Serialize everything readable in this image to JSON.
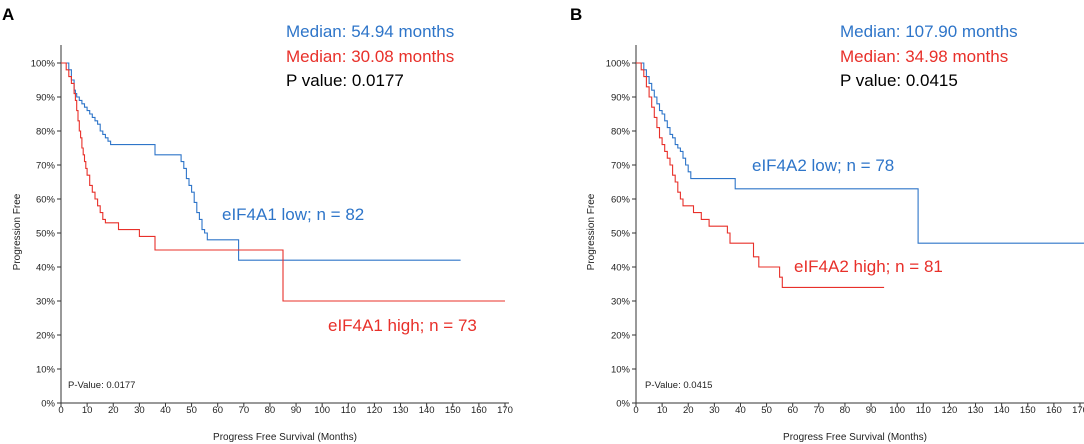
{
  "colors": {
    "low": "#2e75c9",
    "high": "#e8302a",
    "text": "#000000"
  },
  "chart_data": [
    {
      "panel": "A",
      "type": "line",
      "subtype": "kaplan-meier",
      "xlabel": "Progress Free Survival (Months)",
      "ylabel": "Progression Free",
      "xlim": [
        0,
        170
      ],
      "ylim": [
        0,
        100
      ],
      "xticks": [
        0,
        10,
        20,
        30,
        40,
        50,
        60,
        70,
        80,
        90,
        100,
        110,
        120,
        130,
        140,
        150,
        160,
        170
      ],
      "yticks": [
        0,
        10,
        20,
        30,
        40,
        50,
        60,
        70,
        80,
        90,
        100
      ],
      "ytick_labels": [
        "0%",
        "10%",
        "20%",
        "30%",
        "40%",
        "50%",
        "60%",
        "70%",
        "80%",
        "90%",
        "100%"
      ],
      "median_low": "Median: 54.94 months",
      "median_high": "Median: 30.08 months",
      "p_value": "P value: 0.0177",
      "p_value_small": "P-Value: 0.0177",
      "series": [
        {
          "name": "eIF4A1 low; n = 82",
          "key": "low",
          "x": [
            0,
            2.5,
            3,
            4,
            5,
            5.5,
            6,
            7,
            8,
            9,
            10,
            11,
            12,
            13,
            14,
            15,
            16,
            17,
            18,
            19,
            35,
            36,
            45,
            46,
            47,
            48,
            49,
            50,
            51,
            52,
            53,
            54,
            55,
            56,
            67,
            68,
            153
          ],
          "y": [
            100,
            100,
            98,
            95,
            92,
            91,
            90,
            89,
            88,
            87,
            86,
            85,
            84,
            83,
            82,
            80,
            79,
            78,
            77,
            76,
            76,
            73,
            73,
            71,
            69,
            66,
            64,
            62,
            59,
            56,
            54,
            51,
            50,
            48,
            48,
            42,
            42
          ]
        },
        {
          "name": "eIF4A1 high; n = 73",
          "key": "high",
          "x": [
            0,
            1.5,
            2,
            3,
            4,
            5,
            5.5,
            6,
            6.5,
            7,
            7.5,
            8,
            8.5,
            9,
            9.5,
            10,
            11,
            12,
            13,
            14,
            15,
            16,
            17,
            18,
            20,
            22,
            23,
            25,
            30,
            35,
            36,
            84,
            85,
            170
          ],
          "y": [
            100,
            100,
            98,
            96,
            94,
            91,
            89,
            86,
            83,
            80,
            78,
            75,
            73,
            71,
            69,
            67,
            64,
            62,
            60,
            58,
            56,
            54,
            53,
            53,
            53,
            51,
            51,
            51,
            49,
            49,
            45,
            45,
            30,
            30
          ]
        }
      ]
    },
    {
      "panel": "B",
      "type": "line",
      "subtype": "kaplan-meier",
      "xlabel": "Progress Free Survival (Months)",
      "ylabel": "Progression Free",
      "xlim": [
        0,
        170
      ],
      "ylim": [
        0,
        100
      ],
      "xticks": [
        0,
        10,
        20,
        30,
        40,
        50,
        60,
        70,
        80,
        90,
        100,
        110,
        120,
        130,
        140,
        150,
        160,
        170
      ],
      "yticks": [
        0,
        10,
        20,
        30,
        40,
        50,
        60,
        70,
        80,
        90,
        100
      ],
      "ytick_labels": [
        "0%",
        "10%",
        "20%",
        "30%",
        "40%",
        "50%",
        "60%",
        "70%",
        "80%",
        "90%",
        "100%"
      ],
      "median_low": "Median: 107.90 months",
      "median_high": "Median: 34.98 months",
      "p_value": "P value: 0.0415",
      "p_value_small": "P-Value: 0.0415",
      "series": [
        {
          "name": "eIF4A2 low; n = 78",
          "key": "low",
          "x": [
            0,
            2,
            3,
            4,
            5,
            6,
            7,
            8,
            9,
            10,
            11,
            12,
            13,
            14,
            15,
            16,
            17,
            18,
            19,
            20,
            21,
            37,
            38,
            107,
            108,
            172
          ],
          "y": [
            100,
            100,
            98,
            96,
            94,
            92,
            90,
            88,
            86,
            85,
            83,
            81,
            79,
            78,
            76,
            75,
            74,
            72,
            70,
            68,
            66,
            66,
            63,
            63,
            47,
            47
          ]
        },
        {
          "name": "eIF4A2 high; n = 81",
          "key": "high",
          "x": [
            0,
            1.5,
            2,
            3,
            4,
            5,
            6,
            7,
            8,
            9,
            10,
            11,
            12,
            13,
            14,
            15,
            16,
            17,
            18,
            20,
            22,
            25,
            28,
            30,
            35,
            36,
            40,
            45,
            47,
            50,
            55,
            56,
            57,
            95
          ],
          "y": [
            100,
            100,
            98,
            96,
            93,
            90,
            87,
            84,
            81,
            78,
            76,
            74,
            72,
            70,
            67,
            65,
            62,
            60,
            58,
            58,
            56,
            54,
            52,
            52,
            50,
            47,
            47,
            43,
            40,
            40,
            37,
            34,
            34,
            34
          ]
        }
      ]
    }
  ]
}
